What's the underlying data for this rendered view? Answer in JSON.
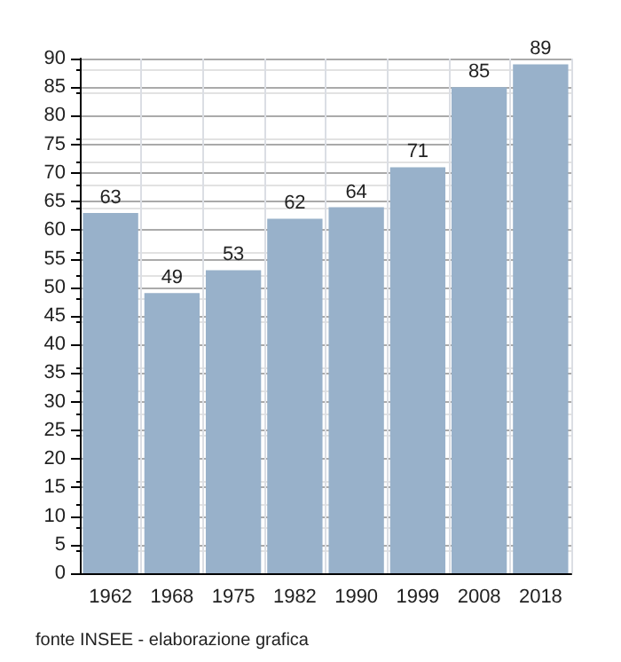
{
  "chart_data": {
    "type": "bar",
    "categories": [
      "1962",
      "1968",
      "1975",
      "1982",
      "1990",
      "1999",
      "2008",
      "2018"
    ],
    "values": [
      63,
      49,
      53,
      62,
      64,
      71,
      85,
      89
    ],
    "color": "#98b1ca",
    "ylim": [
      0,
      90
    ],
    "yticks": [
      0,
      5,
      10,
      15,
      20,
      25,
      30,
      35,
      40,
      45,
      50,
      55,
      60,
      65,
      70,
      75,
      80,
      85,
      90
    ],
    "grid": true,
    "data_labels": true,
    "annotations": [
      "fonte INSEE - elaborazione grafica"
    ]
  }
}
